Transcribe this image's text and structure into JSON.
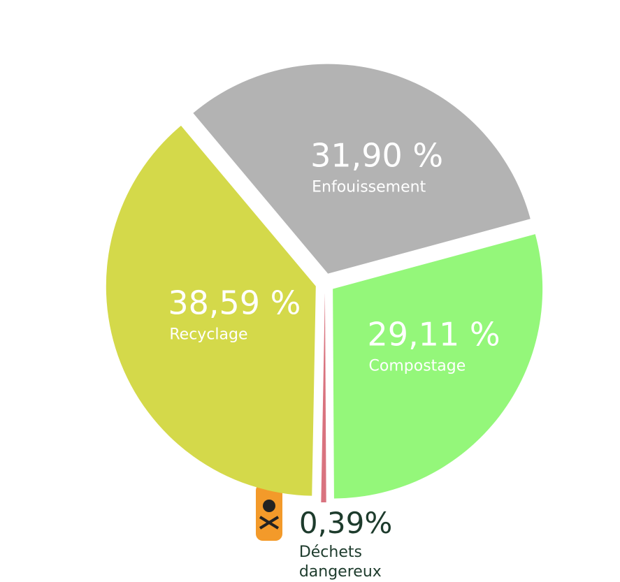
{
  "chart_data": {
    "type": "pie",
    "categories": [
      "Enfouissement",
      "Compostage",
      "Déchets dangereux",
      "Recyclage"
    ],
    "values": [
      31.9,
      29.11,
      0.39,
      38.59
    ],
    "value_labels": [
      "31,90 %",
      "29,11 %",
      "0,39%",
      "38,59 %"
    ],
    "colors": [
      "#b3b3b3",
      "#94f77a",
      "#d9737f",
      "#d4d94a"
    ]
  }
}
